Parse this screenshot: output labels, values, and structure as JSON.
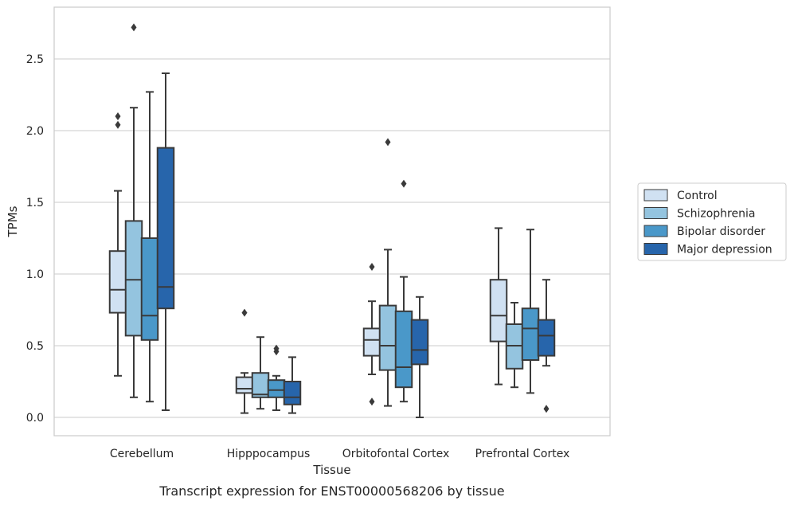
{
  "chart_data": {
    "type": "box",
    "title": "",
    "caption": "Transcript expression for ENST00000568206 by tissue",
    "xlabel": "Tissue",
    "ylabel": "TPMs",
    "ylim": [
      -0.13,
      2.87
    ],
    "yticks": [
      0.0,
      0.5,
      1.0,
      1.5,
      2.0,
      2.5
    ],
    "ytick_labels": [
      "0.0",
      "0.5",
      "1.0",
      "1.5",
      "2.0",
      "2.5"
    ],
    "grid": "horizontal",
    "legend_position": "right",
    "categories": [
      "Cerebellum",
      "Hipppocampus",
      "Orbitofontal Cortex",
      "Prefrontal Cortex"
    ],
    "series": [
      {
        "name": "Control",
        "color": "#d0e1f2",
        "boxes": [
          {
            "whisker_low": 0.29,
            "q1": 0.73,
            "median": 0.89,
            "q3": 1.16,
            "whisker_high": 1.58,
            "outliers": [
              2.04,
              2.1
            ]
          },
          {
            "whisker_low": 0.03,
            "q1": 0.17,
            "median": 0.2,
            "q3": 0.28,
            "whisker_high": 0.31,
            "outliers": [
              0.73
            ]
          },
          {
            "whisker_low": 0.3,
            "q1": 0.43,
            "median": 0.54,
            "q3": 0.62,
            "whisker_high": 0.81,
            "outliers": [
              1.05,
              0.11
            ]
          },
          {
            "whisker_low": 0.23,
            "q1": 0.53,
            "median": 0.71,
            "q3": 0.96,
            "whisker_high": 1.32,
            "outliers": []
          }
        ]
      },
      {
        "name": "Schizophrenia",
        "color": "#94c4df",
        "boxes": [
          {
            "whisker_low": 0.14,
            "q1": 0.57,
            "median": 0.96,
            "q3": 1.37,
            "whisker_high": 2.16,
            "outliers": [
              2.72
            ]
          },
          {
            "whisker_low": 0.06,
            "q1": 0.14,
            "median": 0.16,
            "q3": 0.31,
            "whisker_high": 0.56,
            "outliers": []
          },
          {
            "whisker_low": 0.08,
            "q1": 0.33,
            "median": 0.5,
            "q3": 0.78,
            "whisker_high": 1.17,
            "outliers": [
              1.92
            ]
          },
          {
            "whisker_low": 0.21,
            "q1": 0.34,
            "median": 0.5,
            "q3": 0.65,
            "whisker_high": 0.8,
            "outliers": []
          }
        ]
      },
      {
        "name": "Bipolar disorder",
        "color": "#4a98c9",
        "boxes": [
          {
            "whisker_low": 0.11,
            "q1": 0.54,
            "median": 0.71,
            "q3": 1.25,
            "whisker_high": 2.27,
            "outliers": []
          },
          {
            "whisker_low": 0.05,
            "q1": 0.14,
            "median": 0.19,
            "q3": 0.26,
            "whisker_high": 0.29,
            "outliers": [
              0.46,
              0.48
            ]
          },
          {
            "whisker_low": 0.11,
            "q1": 0.21,
            "median": 0.35,
            "q3": 0.74,
            "whisker_high": 0.98,
            "outliers": [
              1.63
            ]
          },
          {
            "whisker_low": 0.17,
            "q1": 0.4,
            "median": 0.62,
            "q3": 0.76,
            "whisker_high": 1.31,
            "outliers": []
          }
        ]
      },
      {
        "name": "Major depression",
        "color": "#2765ab",
        "boxes": [
          {
            "whisker_low": 0.05,
            "q1": 0.76,
            "median": 0.91,
            "q3": 1.88,
            "whisker_high": 2.4,
            "outliers": []
          },
          {
            "whisker_low": 0.03,
            "q1": 0.09,
            "median": 0.14,
            "q3": 0.25,
            "whisker_high": 0.42,
            "outliers": []
          },
          {
            "whisker_low": 0.0,
            "q1": 0.37,
            "median": 0.47,
            "q3": 0.68,
            "whisker_high": 0.84,
            "outliers": []
          },
          {
            "whisker_low": 0.36,
            "q1": 0.43,
            "median": 0.57,
            "q3": 0.68,
            "whisker_high": 0.96,
            "outliers": [
              0.06
            ]
          }
        ]
      }
    ]
  }
}
